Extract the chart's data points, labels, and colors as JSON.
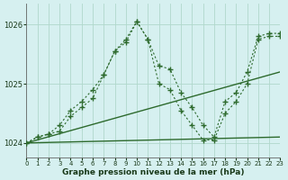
{
  "title": "Graphe pression niveau de la mer (hPa)",
  "bg_color": "#d6f0f0",
  "grid_color": "#b0d8cc",
  "line_color": "#2d6a2d",
  "xlim": [
    0,
    23
  ],
  "ylim": [
    1023.75,
    1026.35
  ],
  "yticks": [
    1024,
    1025,
    1026
  ],
  "xticks": [
    0,
    1,
    2,
    3,
    4,
    5,
    6,
    7,
    8,
    9,
    10,
    11,
    12,
    13,
    14,
    15,
    16,
    17,
    18,
    19,
    20,
    21,
    22,
    23
  ],
  "flat_line": [
    [
      0,
      1024.0
    ],
    [
      23,
      1024.1
    ]
  ],
  "diag_line": [
    [
      0,
      1024.0
    ],
    [
      23,
      1025.2
    ]
  ],
  "curve1_x": [
    0,
    1,
    2,
    3,
    4,
    5,
    6,
    7,
    8,
    9,
    10,
    11,
    12,
    13,
    14,
    15,
    16,
    17,
    18,
    19,
    20,
    21,
    22,
    23
  ],
  "curve1_y": [
    1024.0,
    1024.1,
    1024.15,
    1024.3,
    1024.55,
    1024.7,
    1024.9,
    1025.15,
    1025.55,
    1025.75,
    1026.05,
    1025.75,
    1025.3,
    1025.25,
    1024.85,
    1024.6,
    1024.3,
    1024.1,
    1024.7,
    1024.85,
    1025.2,
    1025.8,
    1025.85,
    1025.85
  ],
  "curve2_x": [
    0,
    1,
    2,
    3,
    4,
    5,
    6,
    7,
    8,
    9,
    10,
    11,
    12,
    13,
    14,
    15,
    16,
    17,
    18,
    19,
    20,
    21,
    22,
    23
  ],
  "curve2_y": [
    1024.0,
    1024.1,
    1024.15,
    1024.2,
    1024.45,
    1024.6,
    1024.75,
    1025.15,
    1025.55,
    1025.7,
    1026.05,
    1025.75,
    1025.0,
    1024.9,
    1024.55,
    1024.3,
    1024.05,
    1024.05,
    1024.5,
    1024.7,
    1025.0,
    1025.75,
    1025.8,
    1025.8
  ]
}
